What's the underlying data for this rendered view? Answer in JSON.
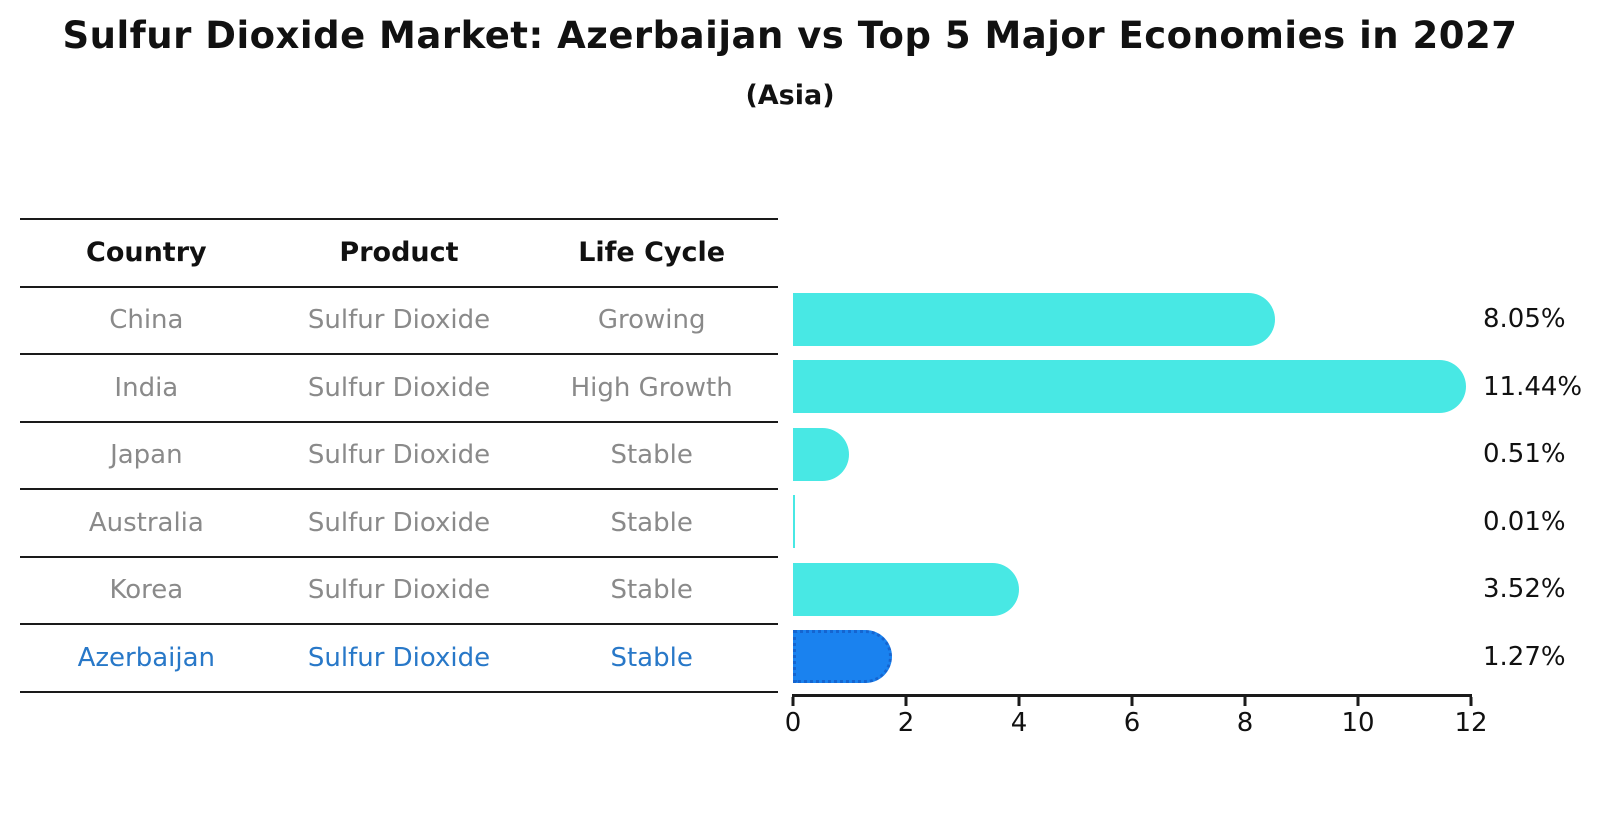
{
  "title": "Sulfur Dioxide Market: Azerbaijan vs Top 5 Major Economies in 2027",
  "subtitle": "(Asia)",
  "table": {
    "headers": [
      "Country",
      "Product",
      "Life Cycle"
    ],
    "rows": [
      {
        "country": "China",
        "product": "Sulfur Dioxide",
        "life_cycle": "Growing",
        "highlight": false
      },
      {
        "country": "India",
        "product": "Sulfur Dioxide",
        "life_cycle": "High Growth",
        "highlight": false
      },
      {
        "country": "Japan",
        "product": "Sulfur Dioxide",
        "life_cycle": "Stable",
        "highlight": false
      },
      {
        "country": "Australia",
        "product": "Sulfur Dioxide",
        "life_cycle": "Stable",
        "highlight": false
      },
      {
        "country": "Korea",
        "product": "Sulfur Dioxide",
        "life_cycle": "Stable",
        "highlight": false
      },
      {
        "country": "Azerbaijan",
        "product": "Sulfur Dioxide",
        "life_cycle": "Stable",
        "highlight": true
      }
    ]
  },
  "chart_data": {
    "type": "bar",
    "orientation": "horizontal",
    "title": "Sulfur Dioxide Market: Azerbaijan vs Top 5 Major Economies in 2027",
    "subtitle": "(Asia)",
    "categories": [
      "China",
      "India",
      "Japan",
      "Australia",
      "Korea",
      "Azerbaijan"
    ],
    "values": [
      8.05,
      11.44,
      0.51,
      0.01,
      3.52,
      1.27
    ],
    "labels": [
      "8.05%",
      "11.44%",
      "0.51%",
      "0.01%",
      "3.52%",
      "1.27%"
    ],
    "xlabel": "",
    "ylabel": "",
    "xlim": [
      0,
      12
    ],
    "x_ticks": [
      0,
      2,
      4,
      6,
      8,
      10,
      12
    ],
    "grid": false,
    "legend": "none",
    "highlight_category": "Azerbaijan",
    "colors": {
      "bar_default": "#48e8e4",
      "bar_highlight": "#1a82ef",
      "bar_highlight_border": "#1565d0",
      "highlight_text": "#2878c8",
      "table_text": "#8a8a8a",
      "text": "#111111"
    }
  }
}
